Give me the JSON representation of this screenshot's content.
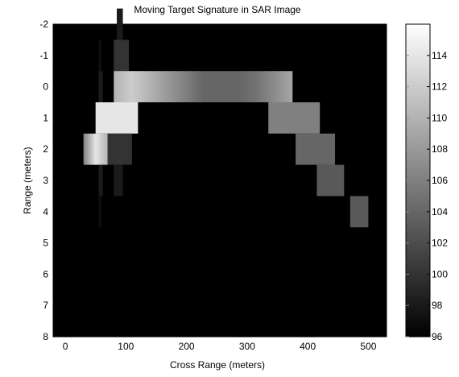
{
  "chart_data": {
    "type": "heatmap",
    "title": "Moving Target Signature in SAR Image",
    "xlabel": "Cross Range (meters)",
    "ylabel": "Range (meters)",
    "xlim": [
      -20,
      530
    ],
    "ylim": [
      -2,
      8
    ],
    "y_reversed": true,
    "xticks": [
      0,
      100,
      200,
      300,
      400,
      500
    ],
    "yticks": [
      -2,
      -1,
      0,
      1,
      2,
      3,
      4,
      5,
      6,
      7,
      8
    ],
    "colormap": "gray",
    "background_value": 96,
    "colorbar": {
      "range": [
        96,
        116
      ],
      "ticks": [
        96,
        98,
        100,
        102,
        104,
        106,
        108,
        110,
        112,
        114
      ],
      "position": "right"
    },
    "cells": [
      {
        "y": -2,
        "x0": 85,
        "x1": 95,
        "value": 98
      },
      {
        "y": -1,
        "x0": 55,
        "x1": 60,
        "value": 97
      },
      {
        "y": -1,
        "x0": 80,
        "x1": 105,
        "value": 100
      },
      {
        "y": 0,
        "x0": 55,
        "x1": 62,
        "value": 98
      },
      {
        "y": 0,
        "x0": 80,
        "x1": 375,
        "value": 110,
        "profile": [
          110,
          112,
          110,
          108,
          106,
          104,
          104,
          104,
          105,
          107,
          109
        ]
      },
      {
        "y": 1,
        "x0": 50,
        "x1": 120,
        "value": 114
      },
      {
        "y": 1,
        "x0": 335,
        "x1": 420,
        "value": 106
      },
      {
        "y": 2,
        "x0": 30,
        "x1": 70,
        "value": 112,
        "profile": [
          106,
          114,
          110
        ]
      },
      {
        "y": 2,
        "x0": 70,
        "x1": 110,
        "value": 100
      },
      {
        "y": 2,
        "x0": 380,
        "x1": 445,
        "value": 104
      },
      {
        "y": 3,
        "x0": 55,
        "x1": 62,
        "value": 98
      },
      {
        "y": 3,
        "x0": 80,
        "x1": 95,
        "value": 98
      },
      {
        "y": 3,
        "x0": 415,
        "x1": 460,
        "value": 103
      },
      {
        "y": 4,
        "x0": 55,
        "x1": 60,
        "value": 97
      },
      {
        "y": 4,
        "x0": 470,
        "x1": 500,
        "value": 103
      }
    ]
  }
}
